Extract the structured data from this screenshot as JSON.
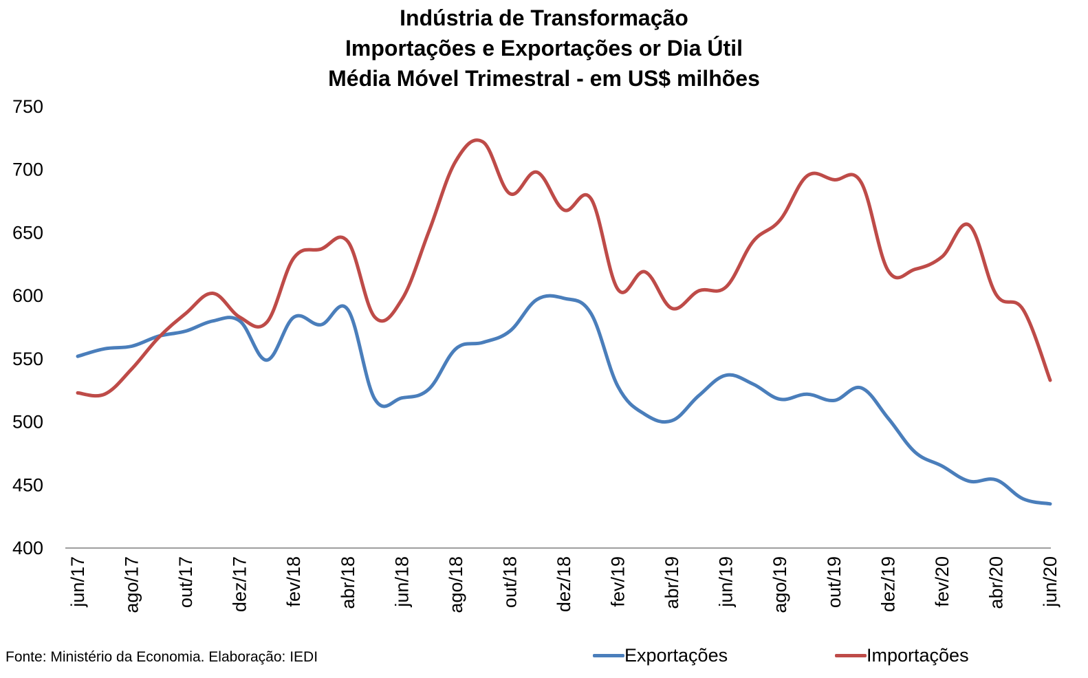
{
  "chart_data": {
    "type": "line",
    "title_lines": [
      "Indústria de Transformação",
      "Importações e Exportações or Dia Útil",
      "Média Móvel Trimestral - em US$ milhões"
    ],
    "xlabel": "",
    "ylabel": "",
    "ylim": [
      400,
      750
    ],
    "yticks": [
      400,
      450,
      500,
      550,
      600,
      650,
      700,
      750
    ],
    "x_tick_labels": [
      "jun/17",
      "ago/17",
      "out/17",
      "dez/17",
      "fev/18",
      "abr/18",
      "jun/18",
      "ago/18",
      "out/18",
      "dez/18",
      "fev/19",
      "abr/19",
      "jun/19",
      "ago/19",
      "out/19",
      "dez/19",
      "fev/20",
      "abr/20",
      "jun/20"
    ],
    "x": [
      "jun/17",
      "jul/17",
      "ago/17",
      "set/17",
      "out/17",
      "nov/17",
      "dez/17",
      "jan/18",
      "fev/18",
      "mar/18",
      "abr/18",
      "mai/18",
      "jun/18",
      "jul/18",
      "ago/18",
      "set/18",
      "out/18",
      "nov/18",
      "dez/18",
      "jan/19",
      "fev/19",
      "mar/19",
      "abr/19",
      "mai/19",
      "jun/19",
      "jul/19",
      "ago/19",
      "set/19",
      "out/19",
      "nov/19",
      "dez/19",
      "jan/20",
      "fev/20",
      "mar/20",
      "abr/20",
      "mai/20",
      "jun/20"
    ],
    "series": [
      {
        "name": "Exportações",
        "color": "#4a7ebb",
        "values": [
          552,
          558,
          560,
          568,
          572,
          580,
          580,
          549,
          583,
          577,
          589,
          518,
          519,
          526,
          558,
          563,
          572,
          597,
          598,
          586,
          528,
          506,
          501,
          521,
          537,
          530,
          518,
          522,
          517,
          527,
          503,
          476,
          465,
          453,
          454,
          439,
          435
        ]
      },
      {
        "name": "Importações",
        "color": "#be4b48",
        "values": [
          523,
          522,
          542,
          567,
          586,
          602,
          583,
          579,
          630,
          637,
          643,
          583,
          597,
          651,
          707,
          722,
          681,
          698,
          668,
          677,
          605,
          619,
          590,
          604,
          607,
          643,
          660,
          695,
          692,
          690,
          620,
          621,
          631,
          656,
          601,
          589,
          533
        ]
      }
    ],
    "grid": false,
    "legend": "bottom"
  },
  "source": "Fonte: Ministério da Economia. Elaboração: IEDI"
}
